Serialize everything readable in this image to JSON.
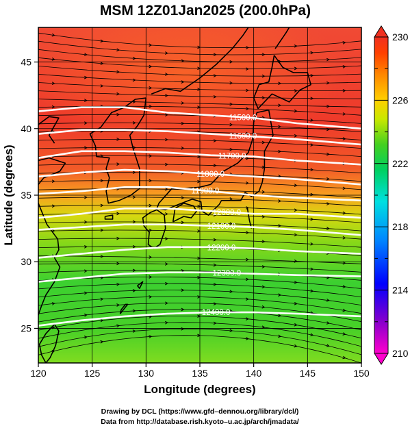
{
  "figure": {
    "title": "MSM 12Z01Jan2025 (200.0hPa)",
    "xlabel": "Longitude (degrees)",
    "ylabel": "Latitude  (degrees)",
    "credit_line1": "Drawing by DCL (https://www.gfd–dennou.org/library/dcl/)",
    "credit_line2": "Data from http://database.rish.kyoto–u.ac.jp/arch/jmadata/"
  },
  "map": {
    "lon_range": [
      120,
      150
    ],
    "lat_range": [
      22.4,
      47.6
    ],
    "lon_ticks": [
      "120",
      "125",
      "130",
      "135",
      "140",
      "145",
      "150"
    ],
    "lat_ticks": [
      "25",
      "30",
      "35",
      "40",
      "45"
    ],
    "lon_tick_values": [
      120,
      125,
      130,
      135,
      140,
      145,
      150
    ],
    "lat_tick_values": [
      25,
      30,
      35,
      40,
      45
    ],
    "grid": true
  },
  "colorbar": {
    "range": [
      210,
      230
    ],
    "tick_labels": [
      "230",
      "226",
      "222",
      "218",
      "214",
      "210"
    ],
    "tick_values": [
      230,
      226,
      222,
      218,
      214,
      210
    ],
    "stops": [
      "#ff00cc",
      "#8800cc",
      "#0000ff",
      "#0088ff",
      "#00e0e0",
      "#00d060",
      "#44d020",
      "#c8e800",
      "#ffd000",
      "#ff8800",
      "#ff4000",
      "#f03020"
    ]
  },
  "contours": [
    {
      "label": "11500.0",
      "label_lon": 139.0,
      "pts": [
        [
          120,
          41.3
        ],
        [
          124,
          41.6
        ],
        [
          128,
          41.6
        ],
        [
          132,
          41.2
        ],
        [
          136,
          41.0
        ],
        [
          140,
          40.8
        ],
        [
          144,
          40.4
        ],
        [
          150,
          40.0
        ]
      ]
    },
    {
      "label": "11600.0",
      "label_lon": 139.0,
      "pts": [
        [
          120,
          39.6
        ],
        [
          124,
          39.9
        ],
        [
          128,
          39.9
        ],
        [
          132,
          39.8
        ],
        [
          136,
          39.6
        ],
        [
          140,
          39.4
        ],
        [
          144,
          39.2
        ],
        [
          150,
          38.8
        ]
      ]
    },
    {
      "label": "11700.0",
      "label_lon": 138.0,
      "pts": [
        [
          120,
          37.8
        ],
        [
          124,
          38.3
        ],
        [
          128,
          38.3
        ],
        [
          132,
          38.2
        ],
        [
          136,
          38.0
        ],
        [
          140,
          37.9
        ],
        [
          144,
          37.6
        ],
        [
          150,
          37.3
        ]
      ]
    },
    {
      "label": "11800.0",
      "label_lon": 136.0,
      "pts": [
        [
          120,
          36.4
        ],
        [
          124,
          36.7
        ],
        [
          128,
          36.9
        ],
        [
          132,
          36.8
        ],
        [
          136,
          36.6
        ],
        [
          140,
          36.4
        ],
        [
          144,
          36.2
        ],
        [
          150,
          35.8
        ]
      ]
    },
    {
      "label": "11900.0",
      "label_lon": 135.5,
      "pts": [
        [
          120,
          35.1
        ],
        [
          124,
          35.3
        ],
        [
          128,
          35.6
        ],
        [
          132,
          35.6
        ],
        [
          136,
          35.3
        ],
        [
          140,
          35.0
        ],
        [
          144,
          34.8
        ],
        [
          150,
          34.6
        ]
      ]
    },
    {
      "label": "12000.0",
      "label_lon": 137.5,
      "pts": [
        [
          120,
          33.3
        ],
        [
          124,
          33.6
        ],
        [
          128,
          34.0
        ],
        [
          132,
          34.0
        ],
        [
          136,
          33.8
        ],
        [
          140,
          33.6
        ],
        [
          144,
          33.6
        ],
        [
          150,
          33.3
        ]
      ]
    },
    {
      "label": "12100.0",
      "label_lon": 137.0,
      "pts": [
        [
          120,
          32.4
        ],
        [
          124,
          32.6
        ],
        [
          128,
          32.8
        ],
        [
          132,
          32.8
        ],
        [
          136,
          32.7
        ],
        [
          140,
          32.6
        ],
        [
          144,
          32.4
        ],
        [
          150,
          32.0
        ]
      ]
    },
    {
      "label": "12200.0",
      "label_lon": 137.0,
      "pts": [
        [
          120,
          30.3
        ],
        [
          124,
          30.6
        ],
        [
          128,
          30.9
        ],
        [
          132,
          31.1
        ],
        [
          136,
          31.1
        ],
        [
          140,
          31.0
        ],
        [
          144,
          30.8
        ],
        [
          150,
          30.6
        ]
      ]
    },
    {
      "label": "12300.0",
      "label_lon": 137.5,
      "pts": [
        [
          120,
          28.5
        ],
        [
          124,
          28.8
        ],
        [
          128,
          29.1
        ],
        [
          132,
          29.2
        ],
        [
          136,
          29.2
        ],
        [
          140,
          29.1
        ],
        [
          144,
          29.0
        ],
        [
          150,
          28.9
        ]
      ]
    },
    {
      "label": "12400.0",
      "label_lon": 136.5,
      "pts": [
        [
          120,
          25.2
        ],
        [
          124,
          25.6
        ],
        [
          128,
          25.9
        ],
        [
          132,
          26.1
        ],
        [
          136,
          26.2
        ],
        [
          140,
          26.2
        ],
        [
          144,
          26.1
        ],
        [
          150,
          25.9
        ]
      ]
    }
  ],
  "coastlines": [
    {
      "name": "korea",
      "pts": [
        [
          130.0,
          42.3
        ],
        [
          129.8,
          41.0
        ],
        [
          129.2,
          40.2
        ],
        [
          128.5,
          39.5
        ],
        [
          128.8,
          38.5
        ],
        [
          129.4,
          37.0
        ],
        [
          129.4,
          35.5
        ],
        [
          128.6,
          35.0
        ],
        [
          127.5,
          34.6
        ],
        [
          126.5,
          34.4
        ],
        [
          126.3,
          35.3
        ],
        [
          126.6,
          36.3
        ],
        [
          126.3,
          37.0
        ],
        [
          126.6,
          37.8
        ],
        [
          125.4,
          37.9
        ],
        [
          125.3,
          38.7
        ],
        [
          124.8,
          39.6
        ],
        [
          125.8,
          40.1
        ],
        [
          126.8,
          41.2
        ],
        [
          128.0,
          41.6
        ],
        [
          129.0,
          42.2
        ],
        [
          130.0,
          42.3
        ]
      ]
    },
    {
      "name": "china-coast",
      "pts": [
        [
          121.5,
          38.9
        ],
        [
          121.0,
          39.5
        ],
        [
          121.9,
          40.8
        ],
        [
          121.0,
          40.9
        ],
        [
          120.0,
          40.3
        ]
      ]
    },
    {
      "name": "shandong",
      "pts": [
        [
          120.0,
          37.6
        ],
        [
          121.0,
          37.8
        ],
        [
          122.5,
          37.4
        ],
        [
          122.0,
          36.8
        ],
        [
          120.5,
          36.3
        ],
        [
          120.0,
          35.8
        ]
      ]
    },
    {
      "name": "china-east",
      "pts": [
        [
          120.0,
          34.4
        ],
        [
          120.8,
          32.8
        ],
        [
          121.8,
          31.7
        ],
        [
          121.9,
          30.9
        ],
        [
          121.5,
          30.3
        ],
        [
          122.0,
          29.6
        ],
        [
          121.5,
          28.5
        ],
        [
          120.7,
          27.5
        ],
        [
          120.3,
          26.7
        ],
        [
          120.0,
          26.0
        ]
      ]
    },
    {
      "name": "taiwan",
      "pts": [
        [
          121.5,
          25.3
        ],
        [
          121.9,
          24.8
        ],
        [
          121.6,
          23.7
        ],
        [
          121.1,
          22.8
        ],
        [
          120.7,
          22.4
        ],
        [
          120.3,
          23.0
        ],
        [
          120.1,
          23.8
        ],
        [
          120.7,
          24.6
        ],
        [
          121.5,
          25.3
        ]
      ]
    },
    {
      "name": "russia-coast",
      "pts": [
        [
          130.5,
          42.6
        ],
        [
          131.8,
          43.0
        ],
        [
          133.2,
          42.8
        ],
        [
          135.0,
          43.8
        ],
        [
          136.5,
          44.8
        ],
        [
          138.0,
          46.0
        ],
        [
          139.0,
          47.0
        ],
        [
          139.5,
          47.6
        ]
      ]
    },
    {
      "name": "sakhalin",
      "pts": [
        [
          142.0,
          46.0
        ],
        [
          142.5,
          46.6
        ],
        [
          143.0,
          47.2
        ],
        [
          143.3,
          47.6
        ]
      ]
    },
    {
      "name": "hokkaido",
      "pts": [
        [
          141.9,
          45.5
        ],
        [
          142.7,
          44.6
        ],
        [
          143.7,
          44.2
        ],
        [
          145.0,
          44.2
        ],
        [
          145.3,
          43.3
        ],
        [
          144.3,
          42.9
        ],
        [
          143.3,
          42.0
        ],
        [
          141.7,
          42.6
        ],
        [
          140.4,
          41.5
        ],
        [
          140.0,
          42.3
        ],
        [
          140.5,
          43.3
        ],
        [
          141.4,
          43.5
        ],
        [
          141.7,
          44.6
        ],
        [
          141.9,
          45.5
        ]
      ]
    },
    {
      "name": "honshu",
      "pts": [
        [
          141.4,
          41.4
        ],
        [
          141.8,
          39.5
        ],
        [
          141.0,
          38.3
        ],
        [
          141.0,
          37.0
        ],
        [
          140.8,
          36.0
        ],
        [
          140.5,
          35.3
        ],
        [
          139.8,
          34.9
        ],
        [
          139.2,
          35.2
        ],
        [
          138.8,
          34.6
        ],
        [
          138.2,
          34.6
        ],
        [
          137.0,
          34.6
        ],
        [
          136.8,
          34.3
        ],
        [
          135.8,
          33.5
        ],
        [
          135.2,
          33.8
        ],
        [
          135.1,
          34.5
        ],
        [
          134.3,
          34.7
        ],
        [
          133.0,
          34.3
        ],
        [
          131.8,
          33.9
        ],
        [
          131.0,
          34.0
        ],
        [
          131.2,
          34.4
        ],
        [
          132.4,
          35.5
        ],
        [
          133.5,
          35.5
        ],
        [
          135.0,
          35.6
        ],
        [
          136.0,
          35.8
        ],
        [
          137.2,
          36.8
        ],
        [
          138.5,
          37.4
        ],
        [
          139.5,
          38.2
        ],
        [
          139.9,
          39.2
        ],
        [
          140.0,
          40.5
        ],
        [
          140.3,
          41.2
        ],
        [
          141.4,
          41.4
        ]
      ]
    },
    {
      "name": "shikoku",
      "pts": [
        [
          132.5,
          33.0
        ],
        [
          133.5,
          33.4
        ],
        [
          134.2,
          33.3
        ],
        [
          134.7,
          33.8
        ],
        [
          134.4,
          34.2
        ],
        [
          133.5,
          34.4
        ],
        [
          132.7,
          34.0
        ],
        [
          132.5,
          33.0
        ]
      ]
    },
    {
      "name": "kyushu",
      "pts": [
        [
          131.0,
          33.9
        ],
        [
          131.7,
          33.5
        ],
        [
          131.8,
          32.5
        ],
        [
          131.3,
          31.3
        ],
        [
          130.7,
          31.0
        ],
        [
          130.2,
          31.3
        ],
        [
          130.3,
          32.2
        ],
        [
          129.8,
          32.7
        ],
        [
          129.7,
          33.3
        ],
        [
          130.4,
          33.7
        ],
        [
          131.0,
          33.9
        ]
      ]
    },
    {
      "name": "jeju",
      "pts": [
        [
          126.2,
          33.4
        ],
        [
          126.9,
          33.5
        ],
        [
          126.9,
          33.2
        ],
        [
          126.2,
          33.2
        ],
        [
          126.2,
          33.4
        ]
      ]
    },
    {
      "name": "okinawa",
      "pts": [
        [
          127.6,
          26.1
        ],
        [
          128.3,
          26.8
        ],
        [
          128.1,
          26.8
        ],
        [
          127.7,
          26.4
        ],
        [
          127.6,
          26.1
        ]
      ]
    },
    {
      "name": "amami",
      "pts": [
        [
          129.2,
          28.2
        ],
        [
          129.7,
          28.5
        ],
        [
          129.4,
          28.0
        ],
        [
          129.2,
          28.2
        ]
      ]
    },
    {
      "name": "izu-islands",
      "pts": [
        [
          139.4,
          34.1
        ],
        [
          139.6,
          33.1
        ],
        [
          139.8,
          32.5
        ]
      ]
    }
  ]
}
